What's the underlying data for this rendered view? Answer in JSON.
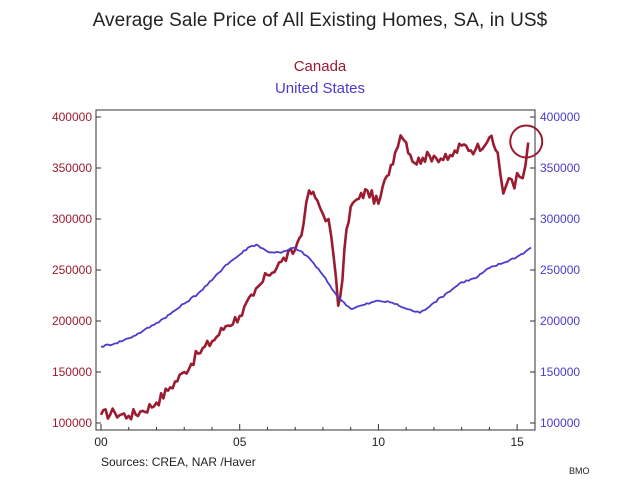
{
  "chart_data": {
    "type": "line",
    "title": "Average Sale Price of All Existing Homes, SA, in US$",
    "ylabel_left": "",
    "ylabel_right": "",
    "xlabel": "",
    "ylim": [
      100000,
      400000
    ],
    "xlim": [
      2000.0,
      2015.5
    ],
    "x_ticks": [
      {
        "value": 2000,
        "label": "00"
      },
      {
        "value": 2005,
        "label": "05"
      },
      {
        "value": 2010,
        "label": "10"
      },
      {
        "value": 2015,
        "label": "15"
      }
    ],
    "y_ticks_left": [
      100000,
      150000,
      200000,
      250000,
      300000,
      350000,
      400000
    ],
    "y_ticks_right": [
      100000,
      150000,
      200000,
      250000,
      300000,
      350000,
      400000
    ],
    "series": [
      {
        "name": "Canada",
        "color": "#9b1b30",
        "x": [
          2000.0,
          2000.5,
          2001.0,
          2001.5,
          2002.0,
          2002.5,
          2003.0,
          2003.5,
          2004.0,
          2004.5,
          2005.0,
          2005.5,
          2006.0,
          2006.5,
          2007.0,
          2007.3,
          2007.5,
          2007.8,
          2008.0,
          2008.2,
          2008.4,
          2008.55,
          2008.7,
          2008.85,
          2009.0,
          2009.3,
          2009.6,
          2010.0,
          2010.3,
          2010.6,
          2010.8,
          2011.0,
          2011.3,
          2011.6,
          2012.0,
          2012.5,
          2013.0,
          2013.5,
          2014.0,
          2014.3,
          2014.5,
          2014.7,
          2014.9,
          2015.0,
          2015.2,
          2015.4
        ],
        "values": [
          108000,
          110000,
          107000,
          112000,
          120000,
          135000,
          150000,
          168000,
          180000,
          195000,
          205000,
          225000,
          245000,
          258000,
          270000,
          295000,
          328000,
          318000,
          305000,
          300000,
          260000,
          215000,
          240000,
          290000,
          312000,
          320000,
          328000,
          315000,
          342000,
          365000,
          382000,
          375000,
          355000,
          360000,
          362000,
          358000,
          372000,
          368000,
          380000,
          365000,
          325000,
          340000,
          330000,
          345000,
          340000,
          375000
        ]
      },
      {
        "name": "United States",
        "color": "#4b3bcc",
        "x": [
          2000.0,
          2000.5,
          2001.0,
          2001.5,
          2002.0,
          2002.5,
          2003.0,
          2003.5,
          2004.0,
          2004.5,
          2005.0,
          2005.3,
          2005.6,
          2006.0,
          2006.5,
          2007.0,
          2007.5,
          2008.0,
          2008.5,
          2009.0,
          2009.5,
          2010.0,
          2010.5,
          2011.0,
          2011.5,
          2012.0,
          2012.5,
          2013.0,
          2013.5,
          2014.0,
          2014.5,
          2015.0,
          2015.3,
          2015.5
        ],
        "values": [
          175000,
          178000,
          183000,
          190000,
          198000,
          207000,
          217000,
          227000,
          240000,
          255000,
          265000,
          272000,
          275000,
          268000,
          267000,
          272000,
          262000,
          245000,
          225000,
          212000,
          216000,
          220000,
          218000,
          212000,
          208000,
          218000,
          228000,
          238000,
          242000,
          252000,
          257000,
          263000,
          268000,
          272000
        ]
      }
    ],
    "annotations": [
      {
        "type": "circle",
        "target": "Canada latest value"
      }
    ]
  },
  "text": {
    "title": "Average Sale Price of All Existing Homes, SA, in US$",
    "legend_canada": "Canada",
    "legend_us": "United States",
    "source": "Sources:  CREA, NAR /Haver",
    "credit": "BMO"
  }
}
